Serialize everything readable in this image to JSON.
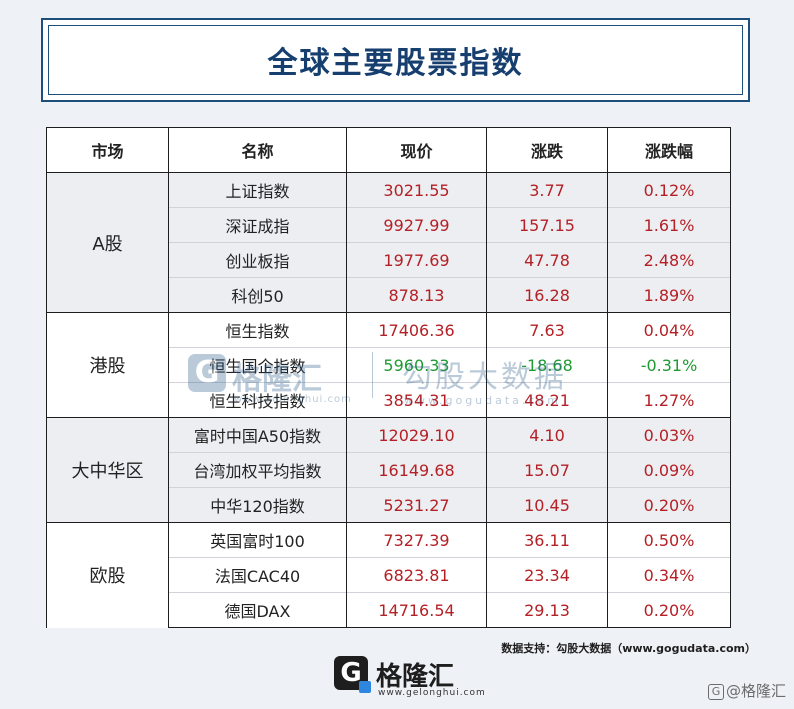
{
  "title": "全球主要股票指数",
  "columns": [
    "市场",
    "名称",
    "现价",
    "涨跌",
    "涨跌幅"
  ],
  "groups": [
    {
      "market": "A股",
      "rows": [
        {
          "name": "上证指数",
          "price": "3021.55",
          "change": "3.77",
          "pct": "0.12%"
        },
        {
          "name": "深证成指",
          "price": "9927.99",
          "change": "157.15",
          "pct": "1.61%"
        },
        {
          "name": "创业板指",
          "price": "1977.69",
          "change": "47.78",
          "pct": "2.48%"
        },
        {
          "name": "科创50",
          "price": "878.13",
          "change": "16.28",
          "pct": "1.89%"
        }
      ]
    },
    {
      "market": "港股",
      "rows": [
        {
          "name": "恒生指数",
          "price": "17406.36",
          "change": "7.63",
          "pct": "0.04%"
        },
        {
          "name": "恒生国企指数",
          "price": "5960.33",
          "change": "-18.68",
          "pct": "-0.31%"
        },
        {
          "name": "恒生科技指数",
          "price": "3854.31",
          "change": "48.21",
          "pct": "1.27%"
        }
      ]
    },
    {
      "market": "大中华区",
      "rows": [
        {
          "name": "富时中国A50指数",
          "price": "12029.10",
          "change": "4.10",
          "pct": "0.03%"
        },
        {
          "name": "台湾加权平均指数",
          "price": "16149.68",
          "change": "15.07",
          "pct": "0.09%"
        },
        {
          "name": "中华120指数",
          "price": "5231.27",
          "change": "10.45",
          "pct": "0.20%"
        }
      ]
    },
    {
      "market": "欧股",
      "rows": [
        {
          "name": "英国富时100",
          "price": "7327.39",
          "change": "36.11",
          "pct": "0.50%"
        },
        {
          "name": "法国CAC40",
          "price": "6823.81",
          "change": "23.34",
          "pct": "0.34%"
        },
        {
          "name": "德国DAX",
          "price": "14716.54",
          "change": "29.13",
          "pct": "0.20%"
        }
      ]
    }
  ],
  "source": "数据支持：勾股大数据（www.gogudata.com）",
  "watermark": {
    "icon_letter": "G",
    "brand": "格隆汇",
    "brand_url": "www.gelonghui.com",
    "brand2": "勾股大数据",
    "brand2_url": "www.gogudata.com"
  },
  "logo": {
    "icon_letter": "G",
    "brand": "格隆汇",
    "url": "www.gelonghui.com"
  },
  "corner_mark": "@格隆汇",
  "colors": {
    "title": "#163e6f",
    "up": "#b42025",
    "down": "#1f9b32",
    "shade": "#eceef2"
  }
}
